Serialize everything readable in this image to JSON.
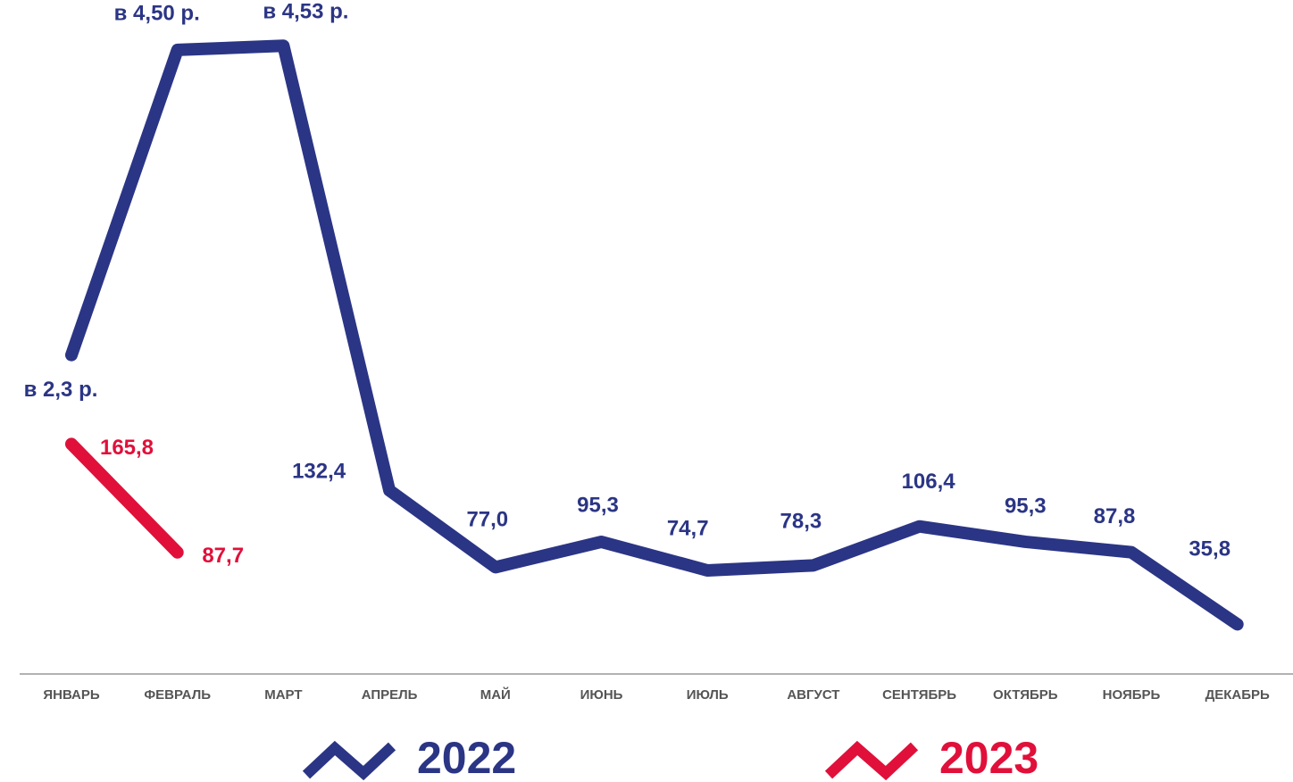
{
  "chart_data": {
    "type": "line",
    "categories": [
      "ЯНВАРЬ",
      "ФЕВРАЛЬ",
      "МАРТ",
      "АПРЕЛЬ",
      "МАЙ",
      "ИЮНЬ",
      "ИЮЛЬ",
      "АВГУСТ",
      "СЕНТЯБРЬ",
      "ОКТЯБРЬ",
      "НОЯБРЬ",
      "ДЕКАБРЬ"
    ],
    "series": [
      {
        "name": "2022",
        "color": "#2b3585",
        "values": [
          230,
          450,
          453,
          132.4,
          77.0,
          95.3,
          74.7,
          78.3,
          106.4,
          95.3,
          87.8,
          35.8
        ],
        "value_labels": [
          "в 2,3 р.",
          "в 4,50 р.",
          "в 4,53 р.",
          "132,4",
          "77,0",
          "95,3",
          "74,7",
          "78,3",
          "106,4",
          "95,3",
          "87,8",
          "35,8"
        ]
      },
      {
        "name": "2023",
        "color": "#e0103a",
        "values": [
          165.8,
          87.7,
          null,
          null,
          null,
          null,
          null,
          null,
          null,
          null,
          null,
          null
        ],
        "value_labels": [
          "165,8",
          "87,7",
          null,
          null,
          null,
          null,
          null,
          null,
          null,
          null,
          null,
          null
        ]
      }
    ],
    "ylim": [
      0,
      486
    ],
    "legend": "bottom"
  }
}
